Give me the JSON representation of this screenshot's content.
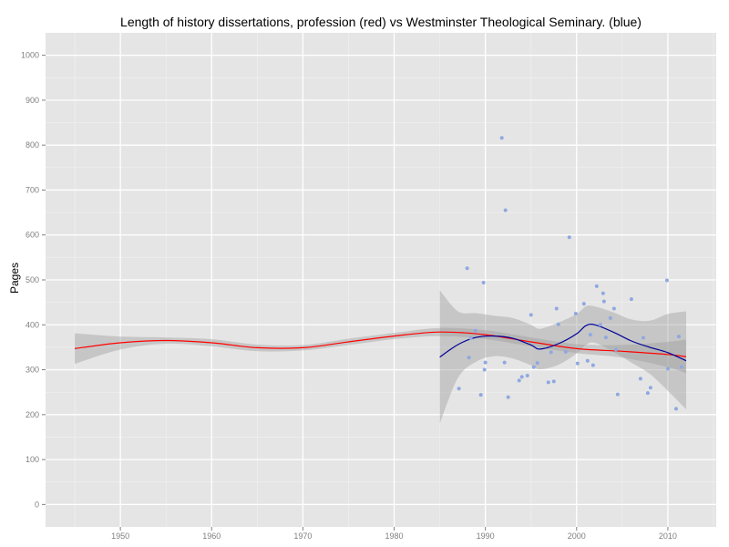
{
  "chart_data": {
    "type": "scatter",
    "title": "Length of history dissertations, profession (red) vs Westminster Theological Seminary. (blue)",
    "xlabel": "",
    "ylabel": "Pages",
    "xlim": [
      1941.8,
      2015.3
    ],
    "ylim": [
      -50,
      1050
    ],
    "x_ticks": [
      1950,
      1960,
      1970,
      1980,
      1990,
      2000,
      2010
    ],
    "y_ticks": [
      0,
      100,
      200,
      300,
      400,
      500,
      600,
      700,
      800,
      900,
      1000
    ],
    "grid": true,
    "background": "#e5e5e5",
    "points_color": "#8fa8e0",
    "series": [
      {
        "kind": "points",
        "x": [
          1987.1,
          1988.0,
          1988.2,
          1988.4,
          1988.9,
          1989.5,
          1989.8,
          1989.9,
          1990.0,
          1991.8,
          1992.1,
          1992.2,
          1992.5,
          1993.7,
          1994.0,
          1994.6,
          1995.0,
          1995.3,
          1995.7,
          1996.9,
          1997.2,
          1997.5,
          1997.8,
          1998.0,
          1998.8,
          1999.2,
          1999.9,
          2000.1,
          2000.8,
          2001.2,
          2001.5,
          2001.8,
          2002.2,
          2002.6,
          2002.9,
          2003.0,
          2003.2,
          2003.7,
          2004.1,
          2004.3,
          2004.5,
          2006.0,
          2007.0,
          2007.3,
          2007.8,
          2008.1,
          2009.9,
          2010.0,
          2010.9,
          2011.2,
          2011.5
        ],
        "y": [
          258,
          526,
          327,
          370,
          387,
          244,
          494,
          300,
          316,
          816,
          316,
          655,
          239,
          276,
          284,
          287,
          422,
          306,
          315,
          272,
          339,
          274,
          436,
          401,
          340,
          595,
          425,
          314,
          447,
          320,
          378,
          310,
          486,
          400,
          470,
          452,
          372,
          415,
          436,
          345,
          245,
          457,
          280,
          371,
          248,
          260,
          499,
          302,
          213,
          374,
          306
        ]
      },
      {
        "name": "profession",
        "kind": "smooth",
        "color": "#ff0000",
        "x": [
          1945,
          1950,
          1955,
          1960,
          1965,
          1970,
          1975,
          1980,
          1985,
          1990,
          1995,
          2000,
          2005,
          2010,
          2012
        ],
        "y": [
          347,
          360,
          365,
          360,
          349,
          349,
          362,
          375,
          384,
          378,
          362,
          347,
          341,
          334,
          329
        ],
        "band_lower": [
          313,
          345,
          358,
          352,
          341,
          343,
          355,
          368,
          375,
          368,
          352,
          337,
          327,
          306,
          292
        ],
        "band_upper": [
          381,
          374,
          372,
          368,
          356,
          355,
          369,
          382,
          393,
          388,
          372,
          357,
          355,
          362,
          367
        ]
      },
      {
        "name": "Westminster Theological Seminary",
        "kind": "smooth",
        "color": "#000099",
        "x": [
          1985,
          1987,
          1989,
          1991,
          1993,
          1995,
          1996,
          1998,
          2000,
          2001,
          2002,
          2004,
          2006,
          2008,
          2010,
          2012
        ],
        "y": [
          328,
          356,
          372,
          375,
          370,
          355,
          346,
          358,
          380,
          398,
          400,
          384,
          364,
          350,
          338,
          320
        ],
        "band_lower": [
          180,
          282,
          318,
          330,
          325,
          310,
          301,
          311,
          336,
          355,
          360,
          340,
          316,
          291,
          253,
          212
        ],
        "band_upper": [
          477,
          430,
          426,
          420,
          415,
          400,
          391,
          405,
          424,
          441,
          441,
          428,
          412,
          409,
          424,
          430
        ]
      }
    ]
  }
}
